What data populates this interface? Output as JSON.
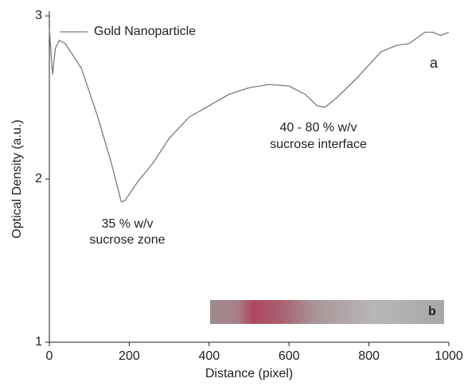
{
  "chart_data": {
    "type": "line",
    "xlabel": "Distance (pixel)",
    "ylabel": "Optical Density (a.u.)",
    "x": [
      0,
      8,
      15,
      25,
      40,
      80,
      120,
      155,
      180,
      190,
      220,
      260,
      300,
      350,
      400,
      450,
      500,
      550,
      600,
      640,
      670,
      690,
      720,
      770,
      830,
      870,
      900,
      940,
      960,
      980,
      1000
    ],
    "series": [
      {
        "name": "Gold Nanoparticle",
        "color": "#7a7a7a",
        "values": [
          2.92,
          2.64,
          2.8,
          2.85,
          2.83,
          2.68,
          2.39,
          2.1,
          1.86,
          1.87,
          1.98,
          2.1,
          2.25,
          2.38,
          2.45,
          2.52,
          2.56,
          2.58,
          2.57,
          2.52,
          2.45,
          2.44,
          2.5,
          2.62,
          2.78,
          2.82,
          2.83,
          2.9,
          2.9,
          2.88,
          2.9
        ]
      }
    ],
    "xlim": [
      0,
      1000
    ],
    "xticks": [
      0,
      200,
      400,
      600,
      800,
      1000
    ],
    "ylim": [
      1,
      3
    ],
    "yticks": [
      1,
      2,
      3
    ],
    "legend": "upper left",
    "annotations": [
      "35 % w/v",
      "sucrose zone",
      "40 - 80 % w/v",
      "sucrose interface",
      "a",
      "b"
    ]
  }
}
